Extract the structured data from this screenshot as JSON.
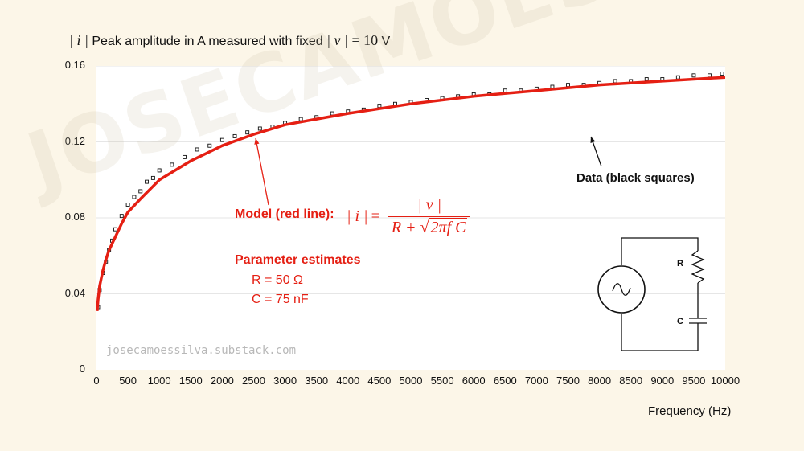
{
  "title": {
    "abs_i": "| i |",
    "text": "Peak amplitude in A measured with fixed",
    "abs_v": "| v |",
    "eq": "= 10",
    "unit": "V"
  },
  "chart_data": {
    "type": "scatter",
    "title": "|i| Peak amplitude in A measured with fixed |v| = 10 V",
    "xlabel": "Frequency (Hz)",
    "ylabel": "",
    "xlim": [
      0,
      10000
    ],
    "ylim": [
      0,
      0.16
    ],
    "x_ticks": [
      "0",
      "500",
      "1000",
      "1500",
      "2000",
      "2500",
      "3000",
      "3500",
      "4000",
      "4500",
      "5000",
      "5500",
      "6000",
      "6500",
      "7000",
      "7500",
      "8000",
      "8500",
      "9000",
      "9500",
      "10000"
    ],
    "y_ticks": [
      "0",
      "0.04",
      "0.08",
      "0.12",
      "0.16"
    ],
    "grid": true,
    "series": [
      {
        "name": "Data (black squares)",
        "kind": "scatter",
        "x": [
          25,
          50,
          100,
          150,
          200,
          250,
          300,
          400,
          500,
          600,
          700,
          800,
          900,
          1000,
          1200,
          1400,
          1600,
          1800,
          2000,
          2200,
          2400,
          2600,
          2800,
          3000,
          3250,
          3500,
          3750,
          4000,
          4250,
          4500,
          4750,
          5000,
          5250,
          5500,
          5750,
          6000,
          6250,
          6500,
          6750,
          7000,
          7250,
          7500,
          7750,
          8000,
          8250,
          8500,
          8750,
          9000,
          9250,
          9500,
          9750,
          9950
        ],
        "y": [
          0.033,
          0.042,
          0.051,
          0.057,
          0.063,
          0.068,
          0.074,
          0.081,
          0.087,
          0.091,
          0.094,
          0.099,
          0.101,
          0.105,
          0.108,
          0.112,
          0.116,
          0.118,
          0.121,
          0.123,
          0.125,
          0.127,
          0.128,
          0.13,
          0.132,
          0.133,
          0.135,
          0.136,
          0.137,
          0.139,
          0.14,
          0.141,
          0.142,
          0.143,
          0.144,
          0.145,
          0.145,
          0.147,
          0.147,
          0.148,
          0.149,
          0.15,
          0.15,
          0.151,
          0.152,
          0.152,
          0.153,
          0.153,
          0.154,
          0.155,
          0.155,
          0.156
        ]
      },
      {
        "name": "Model (red line)",
        "kind": "line",
        "color": "#e51f13",
        "x": [
          10,
          25,
          50,
          100,
          150,
          200,
          300,
          400,
          500,
          700,
          1000,
          1500,
          2000,
          2500,
          3000,
          3500,
          4000,
          5000,
          6000,
          7000,
          8000,
          9000,
          10000
        ],
        "y": [
          0.031,
          0.037,
          0.044,
          0.052,
          0.058,
          0.063,
          0.07,
          0.077,
          0.083,
          0.09,
          0.1,
          0.11,
          0.118,
          0.124,
          0.129,
          0.132,
          0.135,
          0.14,
          0.144,
          0.147,
          0.15,
          0.152,
          0.154
        ]
      }
    ],
    "annotations": [
      "Data (black squares)",
      "Model (red line):"
    ]
  },
  "annotations": {
    "data_label": "Data (black squares)",
    "model_label": "Model (red line):"
  },
  "equation": {
    "lhs": "| i |",
    "equals": "=",
    "numerator": "| v |",
    "denominator_left": "R +",
    "sqrt_symbol": "√",
    "radicand": "2πf C"
  },
  "params": {
    "title": "Parameter estimates",
    "r": "R = 50 Ω",
    "c": "C = 75 nF"
  },
  "circuit": {
    "r_label": "R",
    "c_label": "C",
    "source_icon": "ac-source-icon"
  },
  "watermark": {
    "text": "JOSECAMOESSILVA",
    "url": "josecamoessilva.substack.com"
  },
  "colors": {
    "background": "#fcf6e8",
    "model": "#e51f13",
    "data": "#111111"
  }
}
